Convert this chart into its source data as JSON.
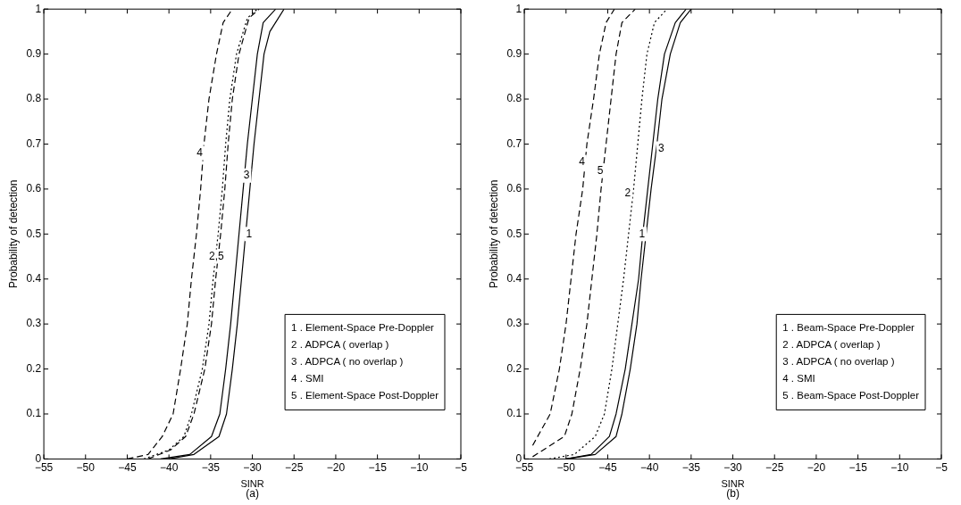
{
  "chart_data": [
    {
      "type": "line",
      "xlabel": "SINR",
      "ylabel": "Probability of detection",
      "xlim": [
        -55,
        -5
      ],
      "xticks": [
        -55,
        -50,
        -45,
        -40,
        -35,
        -30,
        -25,
        -20,
        -15,
        -10,
        -5
      ],
      "ylim": [
        0,
        1
      ],
      "yticks": [
        0,
        0.1,
        0.2,
        0.3,
        0.4,
        0.5,
        0.6,
        0.7,
        0.8,
        0.9,
        1
      ],
      "grid": false,
      "legend": "bottom right",
      "marker": "none",
      "series": [
        {
          "name": "1 . Element-Space Pre-Doppler",
          "color": "#000000",
          "line_style": "solid",
          "x": [
            -40,
            -37,
            -34,
            -33.1,
            -32.4,
            -31.8,
            -31.3,
            -30.8,
            -30.3,
            -29.8,
            -29.2,
            -28.6,
            -27.9,
            -26.2
          ],
          "values": [
            0,
            0.01,
            0.05,
            0.1,
            0.2,
            0.3,
            0.4,
            0.5,
            0.6,
            0.7,
            0.8,
            0.9,
            0.95,
            1
          ]
        },
        {
          "name": "2 . ADPCA ( overlap )",
          "color": "#000000",
          "line_style": "dotted",
          "x": [
            -43,
            -40,
            -38.2,
            -37.3,
            -36,
            -35.2,
            -34.7,
            -34.1,
            -33.6,
            -33.2,
            -32.7,
            -31.9,
            -30.6,
            -29.4
          ],
          "values": [
            0,
            0.02,
            0.05,
            0.1,
            0.2,
            0.3,
            0.4,
            0.5,
            0.6,
            0.7,
            0.8,
            0.9,
            0.98,
            1
          ]
        },
        {
          "name": "3 . ADPCA ( no overlap )",
          "color": "#000000",
          "line_style": "solid",
          "x": [
            -41,
            -37.5,
            -34.9,
            -33.9,
            -33.2,
            -32.6,
            -32.1,
            -31.6,
            -31.1,
            -30.6,
            -30,
            -29.4,
            -28.7,
            -27.2
          ],
          "values": [
            0,
            0.01,
            0.05,
            0.1,
            0.2,
            0.3,
            0.4,
            0.5,
            0.6,
            0.7,
            0.8,
            0.9,
            0.97,
            1
          ]
        },
        {
          "name": "4 . SMI",
          "color": "#000000",
          "line_style": "dashed",
          "x": [
            -45,
            -42.5,
            -40.8,
            -39.5,
            -38.6,
            -37.8,
            -37.3,
            -36.7,
            -36.2,
            -35.8,
            -35.2,
            -34.3,
            -33.5,
            -32.4
          ],
          "values": [
            0,
            0.01,
            0.05,
            0.1,
            0.2,
            0.3,
            0.4,
            0.5,
            0.6,
            0.7,
            0.8,
            0.9,
            0.97,
            1
          ]
        },
        {
          "name": "5 . Element-Space Post-Doppler",
          "color": "#000000",
          "line_style": "dashed",
          "x": [
            -42.5,
            -39.8,
            -38,
            -37,
            -35.7,
            -34.9,
            -34.4,
            -33.8,
            -33.3,
            -32.9,
            -32.4,
            -31.6,
            -30.4,
            -29.2
          ],
          "values": [
            0,
            0.02,
            0.05,
            0.1,
            0.2,
            0.3,
            0.4,
            0.5,
            0.6,
            0.7,
            0.8,
            0.9,
            0.98,
            1
          ]
        }
      ],
      "annotations": [
        {
          "text": "4",
          "x": -36.3,
          "y": 0.68
        },
        {
          "text": "2,5",
          "x": -34.3,
          "y": 0.45
        },
        {
          "text": "3",
          "x": -30.7,
          "y": 0.63
        },
        {
          "text": "1",
          "x": -30.4,
          "y": 0.5
        },
        "(a)"
      ]
    },
    {
      "type": "line",
      "xlabel": "SINR",
      "ylabel": "Probability of detection",
      "xlim": [
        -55,
        -5
      ],
      "xticks": [
        -55,
        -50,
        -45,
        -40,
        -35,
        -30,
        -25,
        -20,
        -15,
        -10,
        -5
      ],
      "ylim": [
        0,
        1
      ],
      "yticks": [
        0,
        0.1,
        0.2,
        0.3,
        0.4,
        0.5,
        0.6,
        0.7,
        0.8,
        0.9,
        1
      ],
      "grid": false,
      "legend": "bottom right",
      "marker": "none",
      "series": [
        {
          "name": "1 . Beam-Space Pre-Doppler",
          "color": "#000000",
          "line_style": "solid",
          "x": [
            -50,
            -47,
            -44.8,
            -44,
            -42.9,
            -42.1,
            -41.3,
            -40.8,
            -40.2,
            -39.6,
            -39,
            -38.2,
            -36.9,
            -35.6
          ],
          "values": [
            0,
            0.01,
            0.05,
            0.1,
            0.2,
            0.3,
            0.4,
            0.5,
            0.6,
            0.7,
            0.8,
            0.9,
            0.97,
            1
          ]
        },
        {
          "name": "2 . ADPCA ( overlap )",
          "color": "#000000",
          "line_style": "dotted",
          "x": [
            -52,
            -49,
            -46.5,
            -45.4,
            -44.5,
            -43.8,
            -43.1,
            -42.5,
            -41.9,
            -41.4,
            -40.9,
            -40.3,
            -39.4,
            -37.9
          ],
          "values": [
            0,
            0.01,
            0.05,
            0.1,
            0.2,
            0.3,
            0.4,
            0.5,
            0.6,
            0.7,
            0.8,
            0.9,
            0.97,
            1
          ]
        },
        {
          "name": "3 . ADPCA ( no overlap )",
          "color": "#000000",
          "line_style": "solid",
          "x": [
            -50,
            -46.5,
            -44,
            -43.3,
            -42.3,
            -41.5,
            -41,
            -40.4,
            -39.8,
            -39.1,
            -38.5,
            -37.5,
            -36.3,
            -35
          ],
          "values": [
            0,
            0.01,
            0.05,
            0.1,
            0.2,
            0.3,
            0.4,
            0.5,
            0.6,
            0.7,
            0.8,
            0.9,
            0.97,
            1
          ]
        },
        {
          "name": "4 . SMI",
          "color": "#000000",
          "line_style": "dashed",
          "x": [
            -54,
            -51.9,
            -50.8,
            -50,
            -49.4,
            -48.8,
            -48,
            -47.5,
            -46.7,
            -46,
            -45.2,
            -44.2
          ],
          "values": [
            0.03,
            0.1,
            0.2,
            0.3,
            0.4,
            0.5,
            0.6,
            0.7,
            0.8,
            0.9,
            0.97,
            1
          ]
        },
        {
          "name": "5 . Beam-Space Post-Doppler",
          "color": "#000000",
          "line_style": "dashed",
          "x": [
            -54,
            -50.2,
            -49.3,
            -48.3,
            -47.5,
            -46.9,
            -46.3,
            -45.8,
            -45.2,
            -44.6,
            -44,
            -43.3,
            -41.7
          ],
          "values": [
            0.005,
            0.05,
            0.1,
            0.2,
            0.3,
            0.4,
            0.5,
            0.6,
            0.7,
            0.8,
            0.9,
            0.97,
            1
          ]
        }
      ],
      "annotations": [
        {
          "text": "4",
          "x": -48.1,
          "y": 0.66
        },
        {
          "text": "5",
          "x": -45.9,
          "y": 0.64
        },
        {
          "text": "2",
          "x": -42.6,
          "y": 0.59
        },
        {
          "text": "1",
          "x": -40.9,
          "y": 0.5
        },
        {
          "text": "3",
          "x": -38.6,
          "y": 0.69
        },
        "(b)"
      ]
    }
  ]
}
